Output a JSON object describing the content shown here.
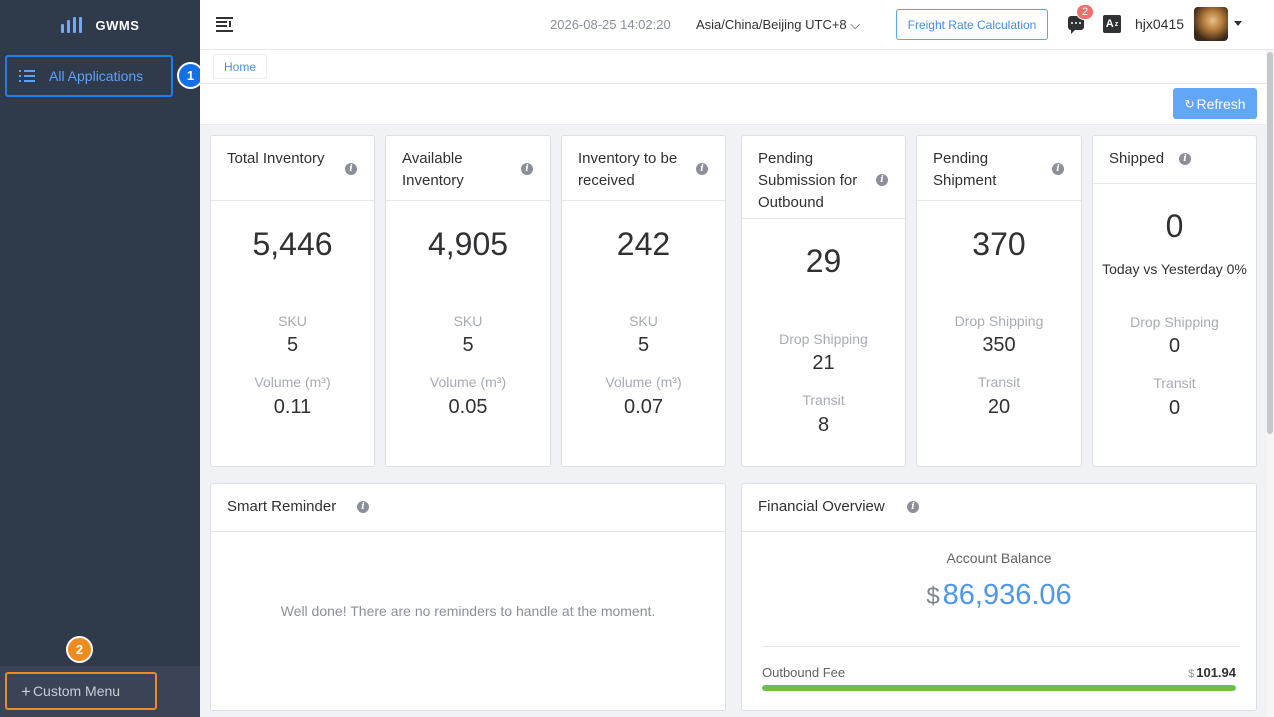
{
  "app": {
    "logo_text": "GWMS",
    "accent_color": "#409eff",
    "sidebar_color": "#2f3a4b"
  },
  "sidebar": {
    "all_apps_label": "All Applications",
    "custom_menu_label": "Custom Menu",
    "annotations": [
      "1",
      "2"
    ]
  },
  "topbar": {
    "datetime": "2026-08-25 14:02:20",
    "timezone": "Asia/China/Beijing UTC+8",
    "freight_button": "Freight Rate Calculation",
    "message_count": "2",
    "language_icon": "A",
    "username": "hjx0415"
  },
  "tags": {
    "home": "Home"
  },
  "toolbar": {
    "refresh_label": "Refresh"
  },
  "stats": [
    {
      "title": "Total Inventory",
      "value": "5,446",
      "sku_label": "SKU",
      "sku": "5",
      "vol_label": "Volume (m³)",
      "vol": "0.11"
    },
    {
      "title": "Available Inventory",
      "value": "4,905",
      "sku_label": "SKU",
      "sku": "5",
      "vol_label": "Volume (m³)",
      "vol": "0.05"
    },
    {
      "title": "Inventory to be received",
      "value": "242",
      "sku_label": "SKU",
      "sku": "5",
      "vol_label": "Volume (m³)",
      "vol": "0.07"
    },
    {
      "title": "Pending Submission for Outbound",
      "value": "29",
      "drop_label": "Drop Shipping",
      "drop": "21",
      "transit_label": "Transit",
      "transit": "8"
    },
    {
      "title": "Pending Shipment",
      "value": "370",
      "drop_label": "Drop Shipping",
      "drop": "350",
      "transit_label": "Transit",
      "transit": "20"
    },
    {
      "title": "Shipped",
      "value": "0",
      "compare": "Today vs Yesterday 0%",
      "drop_label": "Drop Shipping",
      "drop": "0",
      "transit_label": "Transit",
      "transit": "0"
    }
  ],
  "smart_reminder": {
    "title": "Smart Reminder",
    "message": "Well done! There are no reminders to handle at the moment."
  },
  "financial": {
    "title": "Financial Overview",
    "balance_label": "Account Balance",
    "currency": "$",
    "balance": "86,936.06",
    "fee_label": "Outbound Fee",
    "fee": "101.94",
    "fee_progress": 1.0,
    "fee_color": "#6fbf4a"
  }
}
